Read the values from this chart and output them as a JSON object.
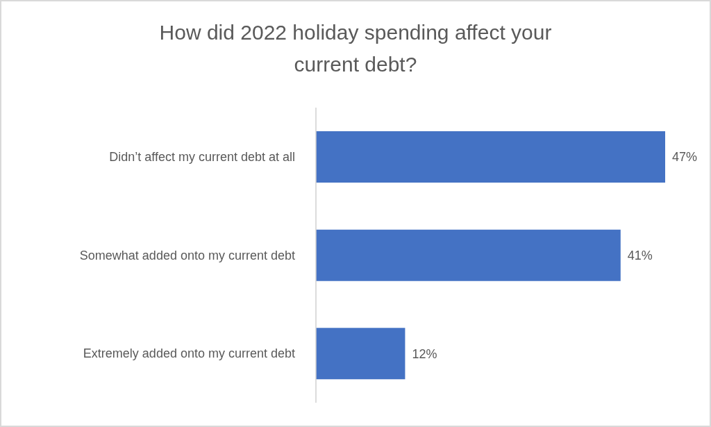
{
  "chart_data": {
    "type": "bar",
    "title": "How did 2022 holiday spending affect your current debt?",
    "categories": [
      "Didn’t affect my current debt at all",
      "Somewhat added onto my current debt",
      "Extremely added onto my current debt"
    ],
    "values": [
      47,
      41,
      12
    ],
    "value_labels": [
      "47%",
      "41%",
      "12%"
    ],
    "color": "#4472c4",
    "orientation": "horizontal"
  }
}
